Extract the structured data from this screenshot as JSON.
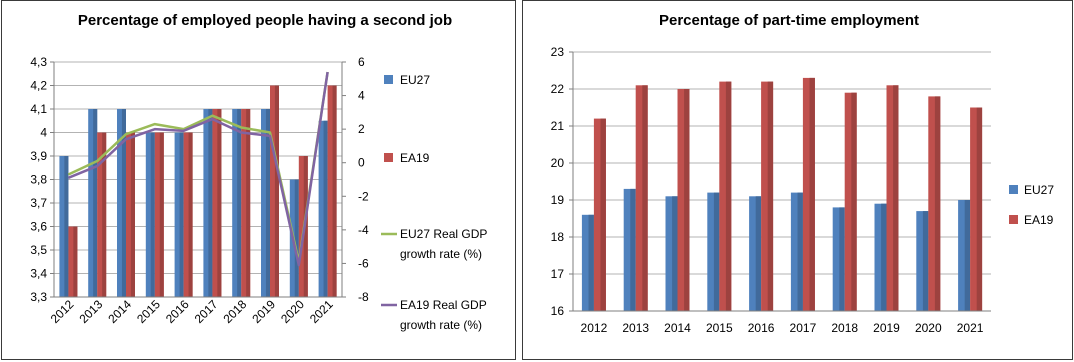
{
  "chart_data": [
    {
      "type": "bar",
      "title": "Percentage of employed people having a second job",
      "categories": [
        "2012",
        "2013",
        "2014",
        "2015",
        "2016",
        "2017",
        "2018",
        "2019",
        "2020",
        "2021"
      ],
      "ylim": [
        3.3,
        4.3
      ],
      "y_ticks": [
        "3,3",
        "3,4",
        "3,5",
        "3,6",
        "3,7",
        "3,8",
        "3,9",
        "4",
        "4,1",
        "4,2",
        "4,3"
      ],
      "y2lim": [
        -8,
        6
      ],
      "y2_ticks": [
        "-8",
        "-6",
        "-4",
        "-2",
        "0",
        "2",
        "4",
        "6"
      ],
      "series": [
        {
          "name": "EU27",
          "kind": "bar",
          "axis": "left",
          "color": "#4f81bd",
          "values": [
            3.9,
            4.1,
            4.1,
            4.0,
            4.0,
            4.1,
            4.1,
            4.1,
            3.8,
            4.05
          ]
        },
        {
          "name": "EA19",
          "kind": "bar",
          "axis": "left",
          "color": "#c0504d",
          "values": [
            3.6,
            4.0,
            4.0,
            4.0,
            4.0,
            4.1,
            4.1,
            4.2,
            3.9,
            4.2
          ]
        },
        {
          "name": "EU27 Real GDP growth rate (%)",
          "legend_lines": [
            "EU27 Real GDP",
            "growth rate (%)"
          ],
          "kind": "line",
          "axis": "right",
          "color": "#9bbb59",
          "values": [
            -0.7,
            0.1,
            1.7,
            2.3,
            2.0,
            2.8,
            2.1,
            1.8,
            -5.9,
            5.4
          ]
        },
        {
          "name": "EA19 Real GDP growth rate (%)",
          "legend_lines": [
            "EA19 Real GDP",
            "growth rate (%)"
          ],
          "kind": "line",
          "axis": "right",
          "color": "#8064a2",
          "values": [
            -0.9,
            -0.2,
            1.4,
            2.0,
            1.9,
            2.6,
            1.8,
            1.6,
            -6.1,
            5.4
          ]
        }
      ],
      "grid": true,
      "legend": "right"
    },
    {
      "type": "bar",
      "title": "Percentage of part-time employment",
      "categories": [
        "2012",
        "2013",
        "2014",
        "2015",
        "2016",
        "2017",
        "2018",
        "2019",
        "2020",
        "2021"
      ],
      "ylim": [
        16,
        23
      ],
      "y_ticks": [
        "16",
        "17",
        "18",
        "19",
        "20",
        "21",
        "22",
        "23"
      ],
      "series": [
        {
          "name": "EU27",
          "color": "#4f81bd",
          "values": [
            18.6,
            19.3,
            19.1,
            19.2,
            19.1,
            19.2,
            18.8,
            18.9,
            18.7,
            19.0
          ]
        },
        {
          "name": "EA19",
          "color": "#c0504d",
          "values": [
            21.2,
            22.1,
            22.0,
            22.2,
            22.2,
            22.3,
            21.9,
            22.1,
            21.8,
            21.5
          ]
        }
      ],
      "grid": true,
      "legend": "right"
    }
  ]
}
